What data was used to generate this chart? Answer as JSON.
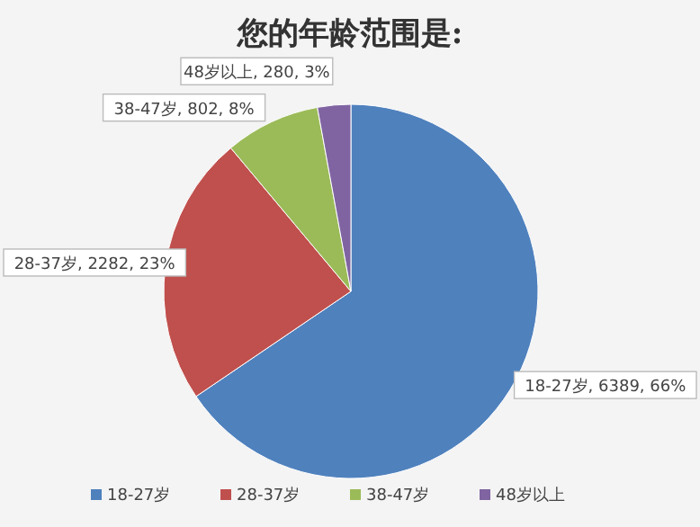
{
  "chart_data": {
    "type": "pie",
    "title": "您的年龄范围是:",
    "categories": [
      "18-27岁",
      "28-37岁",
      "38-47岁",
      "48岁以上"
    ],
    "values": [
      6389,
      2282,
      802,
      280
    ],
    "colors": [
      "#4f81bd",
      "#c0504d",
      "#9bbb59",
      "#8064a2"
    ],
    "value_labels": [
      "18-27岁, 6389, 66%",
      "28-37岁, 2282, 23%",
      "38-47岁, 802, 8%",
      "48岁以上, 280, 3%"
    ],
    "legend": "bottom"
  }
}
